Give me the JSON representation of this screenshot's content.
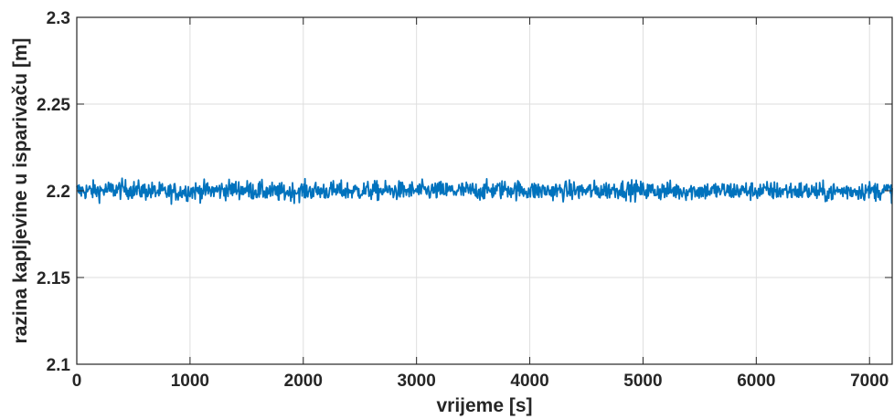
{
  "chart_data": {
    "type": "line",
    "xlabel": "vrijeme [s]",
    "ylabel": "razina kapljevine u isparivaču [m]",
    "xlim": [
      0,
      7200
    ],
    "ylim": [
      2.1,
      2.3
    ],
    "x_ticks": [
      0,
      1000,
      2000,
      3000,
      4000,
      5000,
      6000,
      7000
    ],
    "x_tick_labels": [
      "0",
      "1000",
      "2000",
      "3000",
      "4000",
      "5000",
      "6000",
      "7000"
    ],
    "y_ticks": [
      2.1,
      2.15,
      2.2,
      2.25,
      2.3
    ],
    "y_tick_labels": [
      "2.1",
      "2.15",
      "2.2",
      "2.25",
      "2.3"
    ],
    "grid": true,
    "series": [
      {
        "color": "#0072BD",
        "x": [
          0,
          200,
          400,
          600,
          800,
          1000,
          1200,
          1400,
          1600,
          1800,
          2000,
          2200,
          2400,
          2600,
          2800,
          3000,
          3200,
          3400,
          3600,
          3800,
          4000,
          4200,
          4400,
          4600,
          4800,
          5000,
          5200,
          5400,
          5600,
          5800,
          6000,
          6200,
          6400,
          6600,
          6800,
          7000,
          7200
        ],
        "y": [
          2.2,
          2.2,
          2.201,
          2.2,
          2.199,
          2.2,
          2.2,
          2.201,
          2.2,
          2.199,
          2.2,
          2.2,
          2.2,
          2.2,
          2.2,
          2.2,
          2.2,
          2.2,
          2.2,
          2.201,
          2.2,
          2.2,
          2.2,
          2.2,
          2.201,
          2.2,
          2.2,
          2.2,
          2.2,
          2.2,
          2.2,
          2.2,
          2.2,
          2.199,
          2.2,
          2.2,
          2.2
        ],
        "noise_amplitude": 0.003
      }
    ]
  }
}
